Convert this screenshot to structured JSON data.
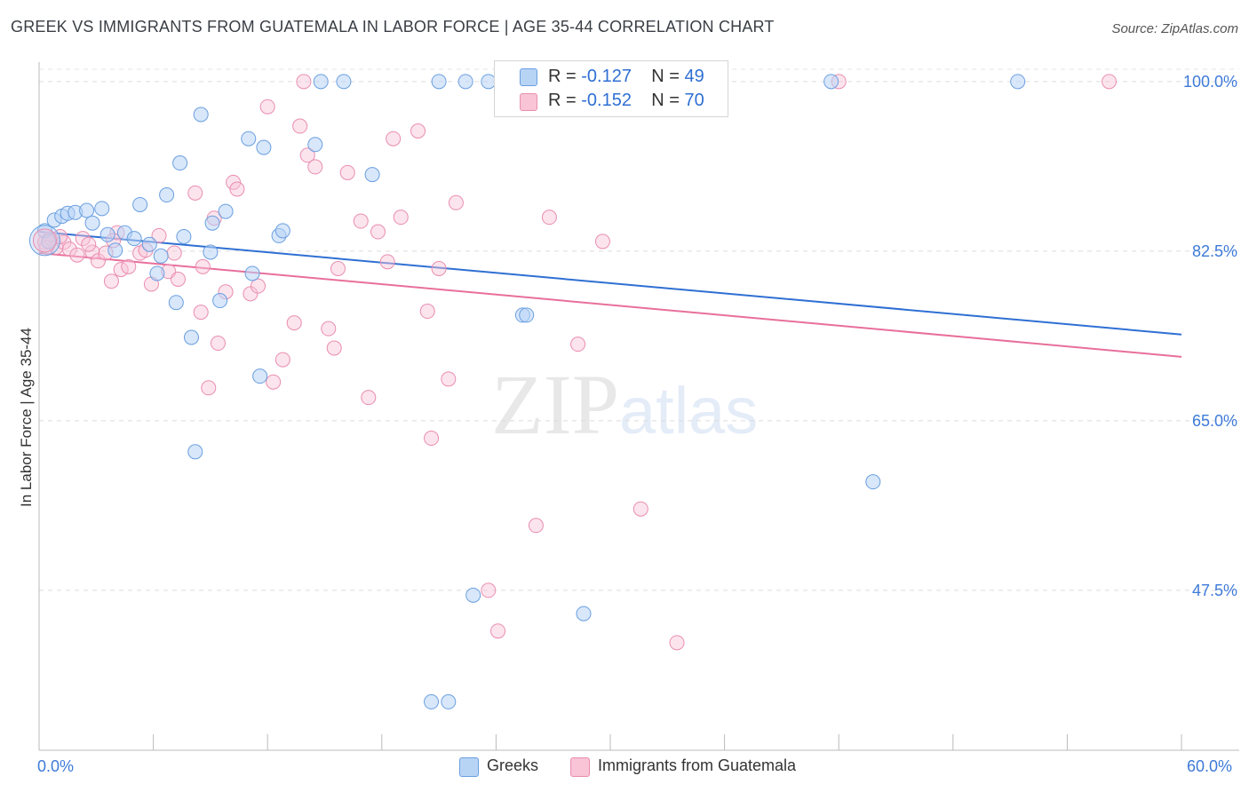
{
  "title": "GREEK VS IMMIGRANTS FROM GUATEMALA IN LABOR FORCE | AGE 35-44 CORRELATION CHART",
  "source": "Source: ZipAtlas.com",
  "watermark": {
    "zip": "ZIP",
    "atlas": "atlas"
  },
  "legend": {
    "greeks": {
      "r_label": "R = ",
      "r_value": "-0.127",
      "n_label": "N = ",
      "n_value": "49"
    },
    "guatemala": {
      "r_label": "R = ",
      "r_value": "-0.152",
      "n_label": "N = ",
      "n_value": "70"
    }
  },
  "colors": {
    "greeks_fill": "#b8d4f5",
    "greeks_line": "#2f6fd3",
    "guatemala_fill": "#f8c4d6",
    "guatemala_line": "#e86f9b",
    "axis_text": "#3d7ad8"
  },
  "chart_data": {
    "type": "scatter",
    "title": "GREEK VS IMMIGRANTS FROM GUATEMALA IN LABOR FORCE | AGE 35-44 CORRELATION CHART",
    "xlabel": "",
    "ylabel": "In Labor Force | Age 35-44",
    "xlim": [
      0,
      60
    ],
    "ylim": [
      31,
      102
    ],
    "x_tick_labels": [
      "0.0%",
      "60.0%"
    ],
    "y_ticks": [
      47.5,
      65.0,
      82.5,
      100.0
    ],
    "y_tick_labels": [
      "47.5%",
      "65.0%",
      "82.5%",
      "100.0%"
    ],
    "grid": true,
    "legend_position": "top-center",
    "series": [
      {
        "name": "Greeks",
        "trend": {
          "x": [
            0,
            60
          ],
          "y": [
            84.5,
            73.9
          ]
        },
        "points": [
          [
            0.3,
            84.6
          ],
          [
            0.5,
            83.5
          ],
          [
            0.8,
            85.7
          ],
          [
            1.2,
            86.1
          ],
          [
            1.5,
            86.4
          ],
          [
            1.9,
            86.5
          ],
          [
            2.5,
            86.7
          ],
          [
            2.8,
            85.4
          ],
          [
            3.3,
            86.9
          ],
          [
            3.6,
            84.2
          ],
          [
            4.0,
            82.6
          ],
          [
            4.5,
            84.4
          ],
          [
            5.0,
            83.8
          ],
          [
            5.3,
            87.3
          ],
          [
            5.8,
            83.2
          ],
          [
            6.2,
            80.2
          ],
          [
            6.4,
            82.0
          ],
          [
            6.7,
            88.3
          ],
          [
            7.2,
            77.2
          ],
          [
            7.4,
            91.6
          ],
          [
            7.6,
            84.0
          ],
          [
            8.0,
            73.6
          ],
          [
            8.2,
            61.8
          ],
          [
            8.5,
            96.6
          ],
          [
            9.0,
            82.4
          ],
          [
            9.1,
            85.4
          ],
          [
            9.5,
            77.4
          ],
          [
            9.8,
            86.6
          ],
          [
            11.0,
            94.1
          ],
          [
            11.2,
            80.2
          ],
          [
            11.6,
            69.6
          ],
          [
            11.8,
            93.2
          ],
          [
            12.6,
            84.1
          ],
          [
            12.8,
            84.6
          ],
          [
            14.5,
            93.5
          ],
          [
            14.8,
            100.0
          ],
          [
            16.0,
            100.0
          ],
          [
            17.5,
            90.4
          ],
          [
            20.6,
            36.0
          ],
          [
            21.0,
            100.0
          ],
          [
            21.5,
            36.0
          ],
          [
            22.4,
            100.0
          ],
          [
            22.8,
            47.0
          ],
          [
            23.6,
            100.0
          ],
          [
            25.4,
            75.9
          ],
          [
            25.6,
            75.9
          ],
          [
            28.6,
            45.1
          ],
          [
            41.6,
            100.0
          ],
          [
            43.8,
            58.7
          ],
          [
            51.4,
            100.0
          ]
        ]
      },
      {
        "name": "Immigrants from Guatemala",
        "trend": {
          "x": [
            0,
            60
          ],
          "y": [
            82.3,
            71.6
          ]
        },
        "points": [
          [
            0.3,
            83.4
          ],
          [
            0.6,
            83.8
          ],
          [
            0.9,
            82.9
          ],
          [
            1.3,
            83.4
          ],
          [
            1.6,
            82.7
          ],
          [
            2.0,
            82.1
          ],
          [
            2.3,
            83.8
          ],
          [
            2.8,
            82.4
          ],
          [
            3.1,
            81.5
          ],
          [
            3.5,
            82.3
          ],
          [
            3.8,
            79.4
          ],
          [
            4.1,
            84.4
          ],
          [
            4.3,
            80.6
          ],
          [
            4.7,
            80.9
          ],
          [
            5.3,
            82.3
          ],
          [
            5.6,
            82.6
          ],
          [
            5.9,
            79.1
          ],
          [
            6.3,
            84.1
          ],
          [
            6.8,
            80.4
          ],
          [
            7.1,
            82.3
          ],
          [
            7.3,
            79.6
          ],
          [
            8.2,
            88.5
          ],
          [
            8.5,
            76.2
          ],
          [
            8.9,
            68.4
          ],
          [
            9.2,
            85.9
          ],
          [
            9.4,
            73.0
          ],
          [
            9.8,
            78.3
          ],
          [
            10.2,
            89.6
          ],
          [
            10.4,
            88.9
          ],
          [
            11.1,
            78.1
          ],
          [
            11.5,
            78.9
          ],
          [
            12.3,
            69.0
          ],
          [
            12.8,
            71.3
          ],
          [
            13.4,
            75.1
          ],
          [
            13.7,
            95.4
          ],
          [
            14.1,
            92.4
          ],
          [
            14.5,
            91.2
          ],
          [
            15.2,
            74.5
          ],
          [
            15.5,
            72.5
          ],
          [
            15.7,
            80.7
          ],
          [
            16.2,
            90.6
          ],
          [
            16.9,
            85.6
          ],
          [
            17.3,
            67.4
          ],
          [
            17.8,
            84.5
          ],
          [
            18.3,
            81.4
          ],
          [
            18.6,
            94.1
          ],
          [
            19.0,
            86.0
          ],
          [
            19.9,
            94.9
          ],
          [
            20.4,
            76.3
          ],
          [
            20.6,
            63.2
          ],
          [
            21.0,
            80.7
          ],
          [
            21.5,
            69.3
          ],
          [
            21.9,
            87.5
          ],
          [
            23.6,
            47.5
          ],
          [
            24.1,
            43.3
          ],
          [
            26.1,
            54.2
          ],
          [
            26.8,
            86.0
          ],
          [
            28.3,
            72.9
          ],
          [
            29.6,
            83.5
          ],
          [
            31.6,
            55.9
          ],
          [
            33.5,
            42.1
          ],
          [
            42.0,
            100.0
          ],
          [
            56.2,
            100.0
          ],
          [
            0.4,
            82.9
          ],
          [
            1.1,
            84.0
          ],
          [
            2.6,
            83.2
          ],
          [
            3.9,
            83.6
          ],
          [
            8.6,
            80.9
          ],
          [
            12.0,
            97.4
          ],
          [
            13.9,
            100.0
          ]
        ]
      }
    ]
  }
}
